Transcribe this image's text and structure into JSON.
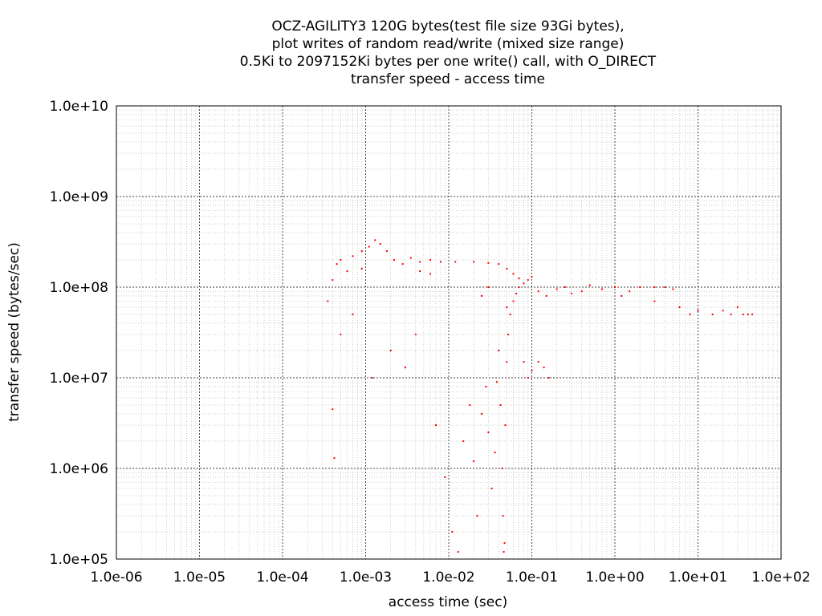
{
  "chart_data": {
    "type": "scatter",
    "title_lines": [
      "OCZ-AGILITY3 120G bytes(test file size 93Gi bytes),",
      "plot writes of random read/write (mixed size range)",
      "0.5Ki to 2097152Ki bytes per one write() call, with O_DIRECT",
      "transfer speed - access time"
    ],
    "xlabel": "access time (sec)",
    "ylabel": "transfer speed (bytes/sec)",
    "x_scale": "log",
    "y_scale": "log",
    "xlim": [
      1e-06,
      100
    ],
    "ylim": [
      100000,
      10000000000
    ],
    "x_ticks": [
      {
        "value": 1e-06,
        "label": "1.0e-06"
      },
      {
        "value": 1e-05,
        "label": "1.0e-05"
      },
      {
        "value": 0.0001,
        "label": "1.0e-04"
      },
      {
        "value": 0.001,
        "label": "1.0e-03"
      },
      {
        "value": 0.01,
        "label": "1.0e-02"
      },
      {
        "value": 0.1,
        "label": "1.0e-01"
      },
      {
        "value": 1,
        "label": "1.0e+00"
      },
      {
        "value": 10,
        "label": "1.0e+01"
      },
      {
        "value": 100,
        "label": "1.0e+02"
      }
    ],
    "y_ticks": [
      {
        "value": 100000,
        "label": "1.0e+05"
      },
      {
        "value": 1000000,
        "label": "1.0e+06"
      },
      {
        "value": 10000000,
        "label": "1.0e+07"
      },
      {
        "value": 100000000,
        "label": "1.0e+08"
      },
      {
        "value": 1000000000,
        "label": "1.0e+09"
      },
      {
        "value": 10000000000,
        "label": "1.0e+10"
      }
    ],
    "grid": true,
    "marker_color": "#ff0000",
    "series": [
      {
        "points": [
          [
            0.00035,
            70000000.0
          ],
          [
            0.0004,
            120000000.0
          ],
          [
            0.00045,
            180000000.0
          ],
          [
            0.0005,
            200000000.0
          ],
          [
            0.0006,
            150000000.0
          ],
          [
            0.0007,
            220000000.0
          ],
          [
            0.0009,
            250000000.0
          ],
          [
            0.0011,
            280000000.0
          ],
          [
            0.0013,
            330000000.0
          ],
          [
            0.0015,
            300000000.0
          ],
          [
            0.0018,
            250000000.0
          ],
          [
            0.0022,
            200000000.0
          ],
          [
            0.0028,
            180000000.0
          ],
          [
            0.0035,
            210000000.0
          ],
          [
            0.0045,
            190000000.0
          ],
          [
            0.006,
            200000000.0
          ],
          [
            0.008,
            190000000.0
          ],
          [
            0.0045,
            150000000.0
          ],
          [
            0.006,
            140000000.0
          ],
          [
            0.0009,
            160000000.0
          ],
          [
            0.0004,
            4500000.0
          ],
          [
            0.00042,
            1300000.0
          ],
          [
            0.0005,
            30000000.0
          ],
          [
            0.0007,
            50000000.0
          ],
          [
            0.0012,
            10000000.0
          ],
          [
            0.002,
            20000000.0
          ],
          [
            0.003,
            13000000.0
          ],
          [
            0.004,
            30000000.0
          ],
          [
            0.007,
            3000000.0
          ],
          [
            0.009,
            800000.0
          ],
          [
            0.011,
            200000.0
          ],
          [
            0.013,
            120000.0
          ],
          [
            0.015,
            2000000.0
          ],
          [
            0.018,
            5000000.0
          ],
          [
            0.02,
            1200000.0
          ],
          [
            0.022,
            300000.0
          ],
          [
            0.025,
            4000000.0
          ],
          [
            0.028,
            8000000.0
          ],
          [
            0.03,
            2500000.0
          ],
          [
            0.033,
            600000.0
          ],
          [
            0.036,
            1500000.0
          ],
          [
            0.038,
            9000000.0
          ],
          [
            0.04,
            20000000.0
          ],
          [
            0.042,
            5000000.0
          ],
          [
            0.044,
            1000000.0
          ],
          [
            0.045,
            300000.0
          ],
          [
            0.046,
            120000.0
          ],
          [
            0.047,
            150000.0
          ],
          [
            0.048,
            3000000.0
          ],
          [
            0.05,
            15000000.0
          ],
          [
            0.052,
            30000000.0
          ],
          [
            0.055,
            50000000.0
          ],
          [
            0.06,
            70000000.0
          ],
          [
            0.065,
            85000000.0
          ],
          [
            0.07,
            100000000.0
          ],
          [
            0.08,
            110000000.0
          ],
          [
            0.09,
            120000000.0
          ],
          [
            0.1,
            130000000.0
          ],
          [
            0.012,
            190000000.0
          ],
          [
            0.02,
            190000000.0
          ],
          [
            0.03,
            185000000.0
          ],
          [
            0.04,
            180000000.0
          ],
          [
            0.05,
            160000000.0
          ],
          [
            0.06,
            140000000.0
          ],
          [
            0.07,
            125000000.0
          ],
          [
            0.03,
            100000000.0
          ],
          [
            0.025,
            80000000.0
          ],
          [
            0.05,
            60000000.0
          ],
          [
            0.08,
            15000000.0
          ],
          [
            0.09,
            10000000.0
          ],
          [
            0.1,
            12000000.0
          ],
          [
            0.12,
            15000000.0
          ],
          [
            0.14,
            13000000.0
          ],
          [
            0.16,
            10000000.0
          ],
          [
            0.12,
            90000000.0
          ],
          [
            0.15,
            80000000.0
          ],
          [
            0.2,
            95000000.0
          ],
          [
            0.25,
            100000000.0
          ],
          [
            0.3,
            85000000.0
          ],
          [
            0.4,
            90000000.0
          ],
          [
            0.5,
            105000000.0
          ],
          [
            0.7,
            95000000.0
          ],
          [
            1.0,
            100000000.0
          ],
          [
            1.5,
            90000000.0
          ],
          [
            2.0,
            100000000.0
          ],
          [
            3.0,
            100000000.0
          ],
          [
            4.0,
            100000000.0
          ],
          [
            5.0,
            95000000.0
          ],
          [
            1.2,
            80000000.0
          ],
          [
            3.0,
            70000000.0
          ],
          [
            6.0,
            60000000.0
          ],
          [
            8.0,
            50000000.0
          ],
          [
            10.0,
            55000000.0
          ],
          [
            15.0,
            50000000.0
          ],
          [
            20.0,
            55000000.0
          ],
          [
            25.0,
            50000000.0
          ],
          [
            30.0,
            60000000.0
          ],
          [
            35.0,
            50000000.0
          ],
          [
            40.0,
            50000000.0
          ],
          [
            45.0,
            50000000.0
          ]
        ]
      }
    ]
  }
}
